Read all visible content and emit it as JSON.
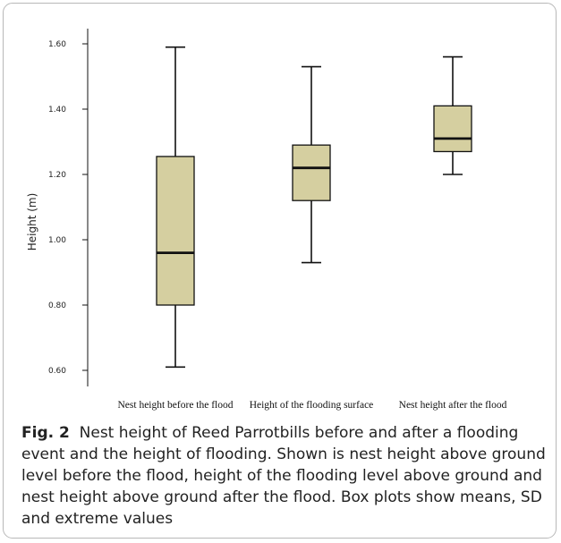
{
  "chart_data": {
    "type": "box",
    "ylabel": "Height (m)",
    "ylim": [
      0.55,
      1.62
    ],
    "yticks": [
      "0.60",
      "0.80",
      "1.00",
      "1.20",
      "1.40",
      "1.60"
    ],
    "grid": false,
    "colors": {
      "box_fill": "#d5cfa0",
      "stroke": "#111111"
    },
    "boxes": [
      {
        "category": "Nest height before the flood",
        "min": 0.61,
        "q1": 0.8,
        "median": 0.96,
        "q3": 1.255,
        "max": 1.59
      },
      {
        "category": "Height of the flooding surface",
        "min": 0.93,
        "q1": 1.12,
        "median": 1.22,
        "q3": 1.29,
        "max": 1.53
      },
      {
        "category": "Nest height after the flood",
        "min": 1.2,
        "q1": 1.27,
        "median": 1.31,
        "q3": 1.41,
        "max": 1.56
      }
    ]
  },
  "caption": {
    "label": "Fig. 2",
    "text": "Nest height of Reed Parrotbills before and after a flooding event and the height of flooding. Shown is nest height above ground level before the flood, height of the flooding level above ground and nest height above ground after the flood. Box plots show means, SD and extreme values"
  }
}
